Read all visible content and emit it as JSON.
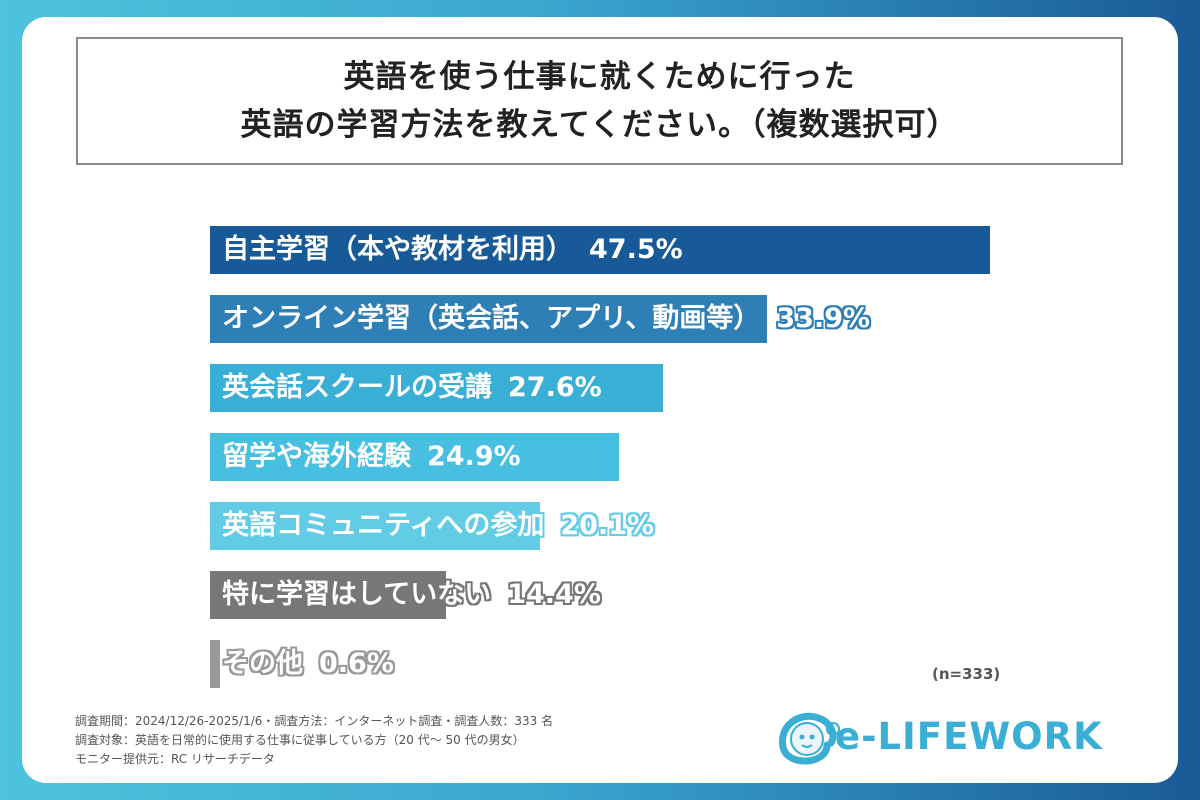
{
  "title": {
    "line1": "英語を使う仕事に就くために行った",
    "line2": "英語の学習方法を教えてください。（複数選択可）"
  },
  "chart_data": {
    "type": "bar",
    "orientation": "horizontal",
    "categories": [
      "自主学習（本や教材を利用）",
      "オンライン学習（英会話、アプリ、動画等）",
      "英会話スクールの受講",
      "留学や海外経験",
      "英語コミュニティへの参加",
      "特に学習はしていない",
      "その他"
    ],
    "values": [
      47.5,
      33.9,
      27.6,
      24.9,
      20.1,
      14.4,
      0.6
    ],
    "value_labels": [
      "47.5%",
      "33.9%",
      "27.6%",
      "24.9%",
      "20.1%",
      "14.4%",
      "0.6%"
    ],
    "colors": [
      "#175a97",
      "#2e7fb6",
      "#39afd6",
      "#46bfe0",
      "#62cbe6",
      "#777777",
      "#999999"
    ],
    "xlim": [
      0,
      50
    ],
    "grid": false,
    "legend": "none"
  },
  "sample_size": "(n=333)",
  "footnotes": [
    "調査期間：2024/12/26-2025/1/6・調査方法：インターネット調査・調査人数：333 名",
    "調査対象：英語を日常的に使用する仕事に従事している方（20 代～ 50 代の男女）",
    "モニター提供元：RC リサーチデータ"
  ],
  "logo": {
    "text": "e-LIFEWORK",
    "color": "#3aaed4"
  }
}
